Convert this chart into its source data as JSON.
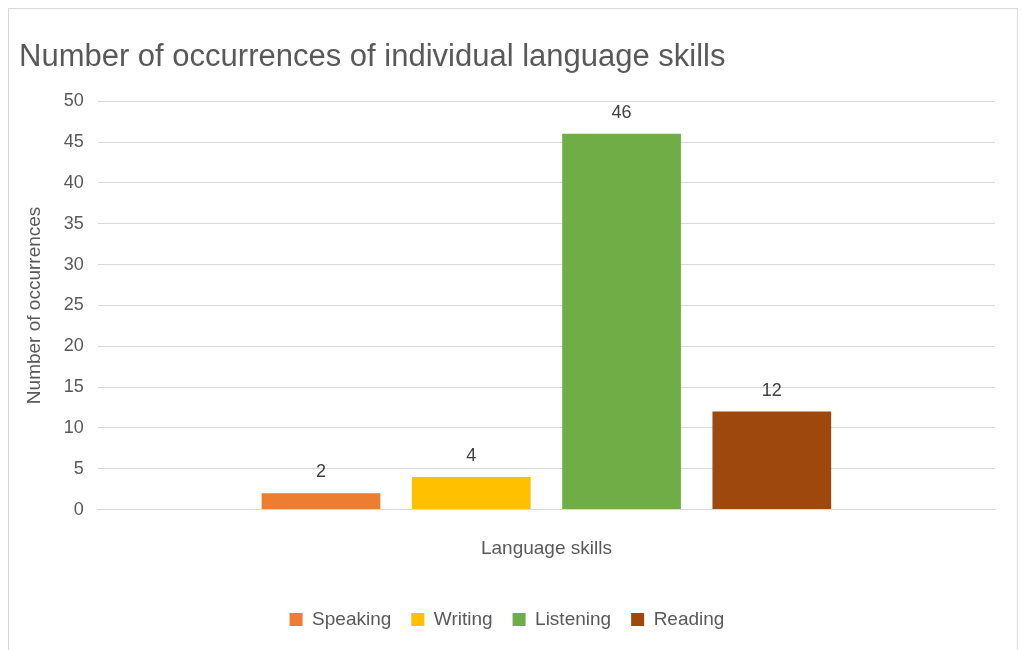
{
  "chart_data": {
    "type": "bar",
    "title": "Number of occurrences of individual language skills",
    "xlabel": "Language skills",
    "ylabel": "Number of occurrences",
    "categories": [
      null
    ],
    "series": [
      {
        "name": "Speaking",
        "color": "#ed7d31",
        "values": [
          2
        ]
      },
      {
        "name": "Writing",
        "color": "#ffc000",
        "values": [
          4
        ]
      },
      {
        "name": "Listening",
        "color": "#70ad47",
        "values": [
          46
        ]
      },
      {
        "name": "Reading",
        "color": "#9e480e",
        "values": [
          12
        ]
      }
    ],
    "ylim": [
      0,
      50
    ],
    "yticks": [
      0,
      5,
      10,
      15,
      20,
      25,
      30,
      35,
      40,
      45,
      50
    ],
    "grid": "y",
    "legend": "bottom",
    "data_labels": true
  }
}
